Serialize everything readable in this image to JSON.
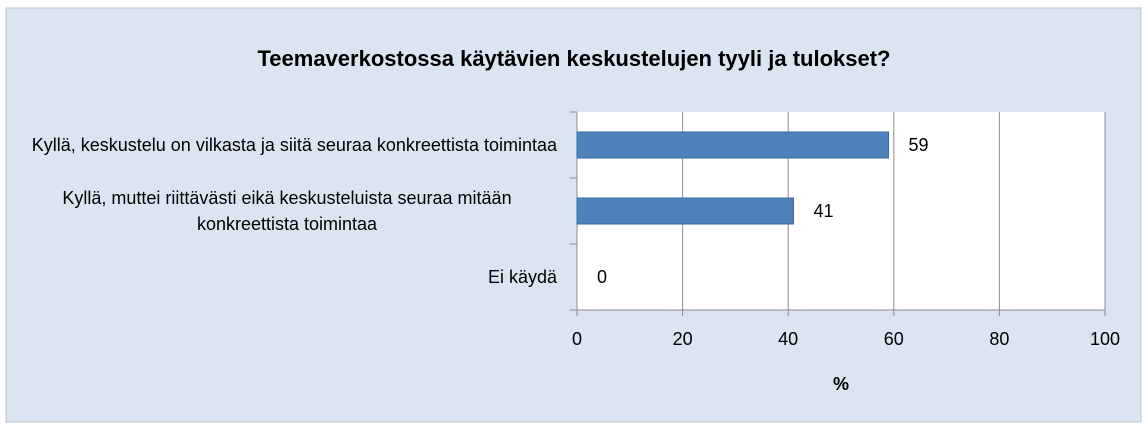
{
  "chart_data": {
    "type": "bar",
    "orientation": "horizontal",
    "title": "Teemaverkostossa käytävien keskustelujen tyyli ja tulokset?",
    "categories": [
      "Kyllä, keskustelu on vilkasta ja siitä seuraa konkreettista toimintaa",
      "Kyllä, muttei riittävästi eikä keskusteluista seuraa mitään konkreettista toimintaa",
      "Ei käydä"
    ],
    "values": [
      59,
      41,
      0
    ],
    "color": "#4f81bd",
    "xlim": [
      0,
      100
    ],
    "xticks": [
      0,
      20,
      40,
      60,
      80,
      100
    ],
    "xlabel": "%",
    "grid": true
  }
}
